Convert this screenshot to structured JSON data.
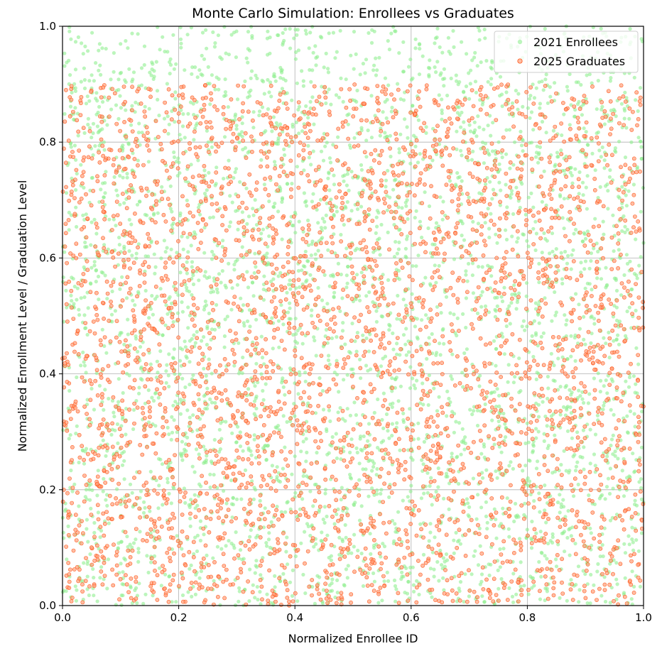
{
  "chart_data": {
    "type": "scatter",
    "title": "Monte Carlo Simulation: Enrollees vs Graduates",
    "xlabel": "Normalized Enrollee ID",
    "ylabel": "Normalized Enrollment Level / Graduation Level",
    "xlim": [
      0.0,
      1.0
    ],
    "ylim": [
      0.0,
      1.0
    ],
    "x_ticks": [
      "0.0",
      "0.2",
      "0.4",
      "0.6",
      "0.8",
      "1.0"
    ],
    "y_ticks": [
      "0.0",
      "0.2",
      "0.4",
      "0.6",
      "0.8",
      "1.0"
    ],
    "grid": true,
    "legend_position": "top-right",
    "series": [
      {
        "name": "2021 Enrollees",
        "color": "#90ee90",
        "alpha": 0.6,
        "distribution": "uniform",
        "n_points": 4000,
        "seed": 2021,
        "x_range": [
          0.0,
          1.0
        ],
        "y_range": [
          0.0,
          1.0
        ]
      },
      {
        "name": "2025 Graduates",
        "color": "#ffa07a",
        "edge_color": "#ff4500",
        "alpha": 0.7,
        "distribution": "uniform",
        "n_points": 3500,
        "seed": 2025,
        "x_range": [
          0.0,
          1.0
        ],
        "y_range": [
          0.0,
          0.9
        ]
      }
    ]
  }
}
